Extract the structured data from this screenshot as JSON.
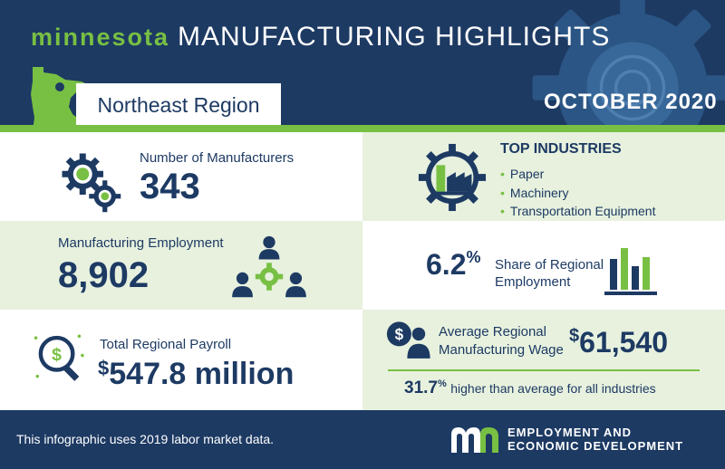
{
  "header": {
    "brand": "minnesota",
    "title": "MANUFACTURING HIGHLIGHTS",
    "region": "Northeast Region",
    "date": "OCTOBER 2020"
  },
  "manufacturers": {
    "label": "Number of Manufacturers",
    "value": "343"
  },
  "industries": {
    "heading": "TOP INDUSTRIES",
    "items": [
      "Paper",
      "Machinery",
      "Transportation Equipment"
    ]
  },
  "employment": {
    "label": "Manufacturing Employment",
    "value": "8,902"
  },
  "share": {
    "value": "6.2",
    "unit": "%",
    "label_line1": "Share of Regional",
    "label_line2": "Employment"
  },
  "payroll": {
    "label": "Total Regional Payroll",
    "currency": "$",
    "value": "547.8 million"
  },
  "wage": {
    "label_line1": "Average Regional",
    "label_line2": "Manufacturing Wage",
    "currency": "$",
    "value": "61,540",
    "diff_value": "31.7",
    "diff_unit": "%",
    "diff_text": "higher than average for all industries"
  },
  "footer": {
    "note": "This infographic uses 2019 labor market data.",
    "org_line1": "EMPLOYMENT AND",
    "org_line2": "ECONOMIC DEVELOPMENT"
  },
  "colors": {
    "navy": "#1d3a63",
    "green": "#78c043",
    "light_green": "#e7f1de"
  },
  "icons": [
    "gears-icon",
    "factory-icon",
    "team-gear-icon",
    "bar-chart-icon",
    "magnifier-dollar-icon",
    "person-dollar-icon",
    "deed-logo"
  ]
}
